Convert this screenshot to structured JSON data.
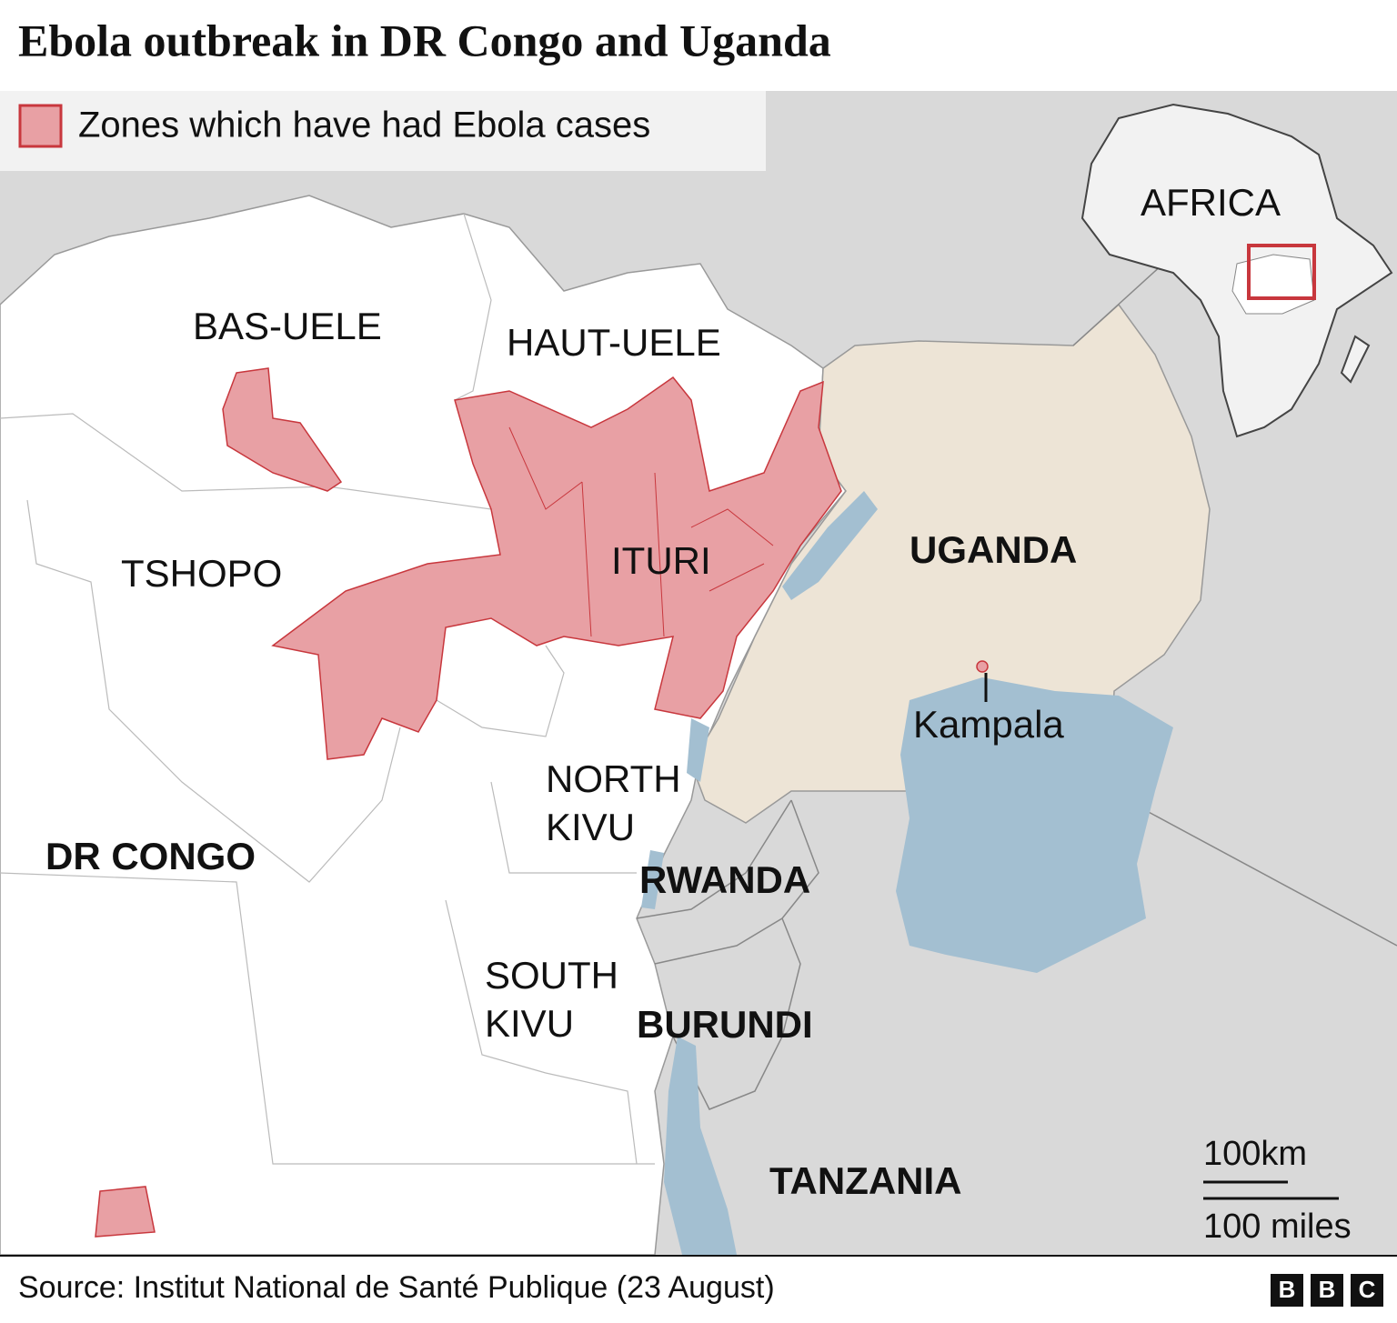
{
  "header": {
    "title": "Ebola outbreak in DR Congo and Uganda"
  },
  "legend": {
    "label": "Zones which have had Ebola cases"
  },
  "map": {
    "regions": [
      {
        "lines": [
          "BAS-UELE"
        ]
      },
      {
        "lines": [
          "HAUT-UELE"
        ]
      },
      {
        "lines": [
          "ITURI"
        ]
      },
      {
        "lines": [
          "TSHOPO"
        ]
      },
      {
        "lines": [
          "NORTH",
          "KIVU"
        ]
      },
      {
        "lines": [
          "SOUTH",
          "KIVU"
        ]
      }
    ],
    "countries": [
      "DR CONGO",
      "UGANDA",
      "RWANDA",
      "BURUNDI",
      "TANZANIA"
    ],
    "city": "Kampala",
    "inset_label": "AFRICA"
  },
  "scale": {
    "km": "100km",
    "miles": "100 miles"
  },
  "footer": {
    "source": "Source: Institut National de Santé Publique (23 August)",
    "logo": [
      "B",
      "B",
      "C"
    ]
  }
}
